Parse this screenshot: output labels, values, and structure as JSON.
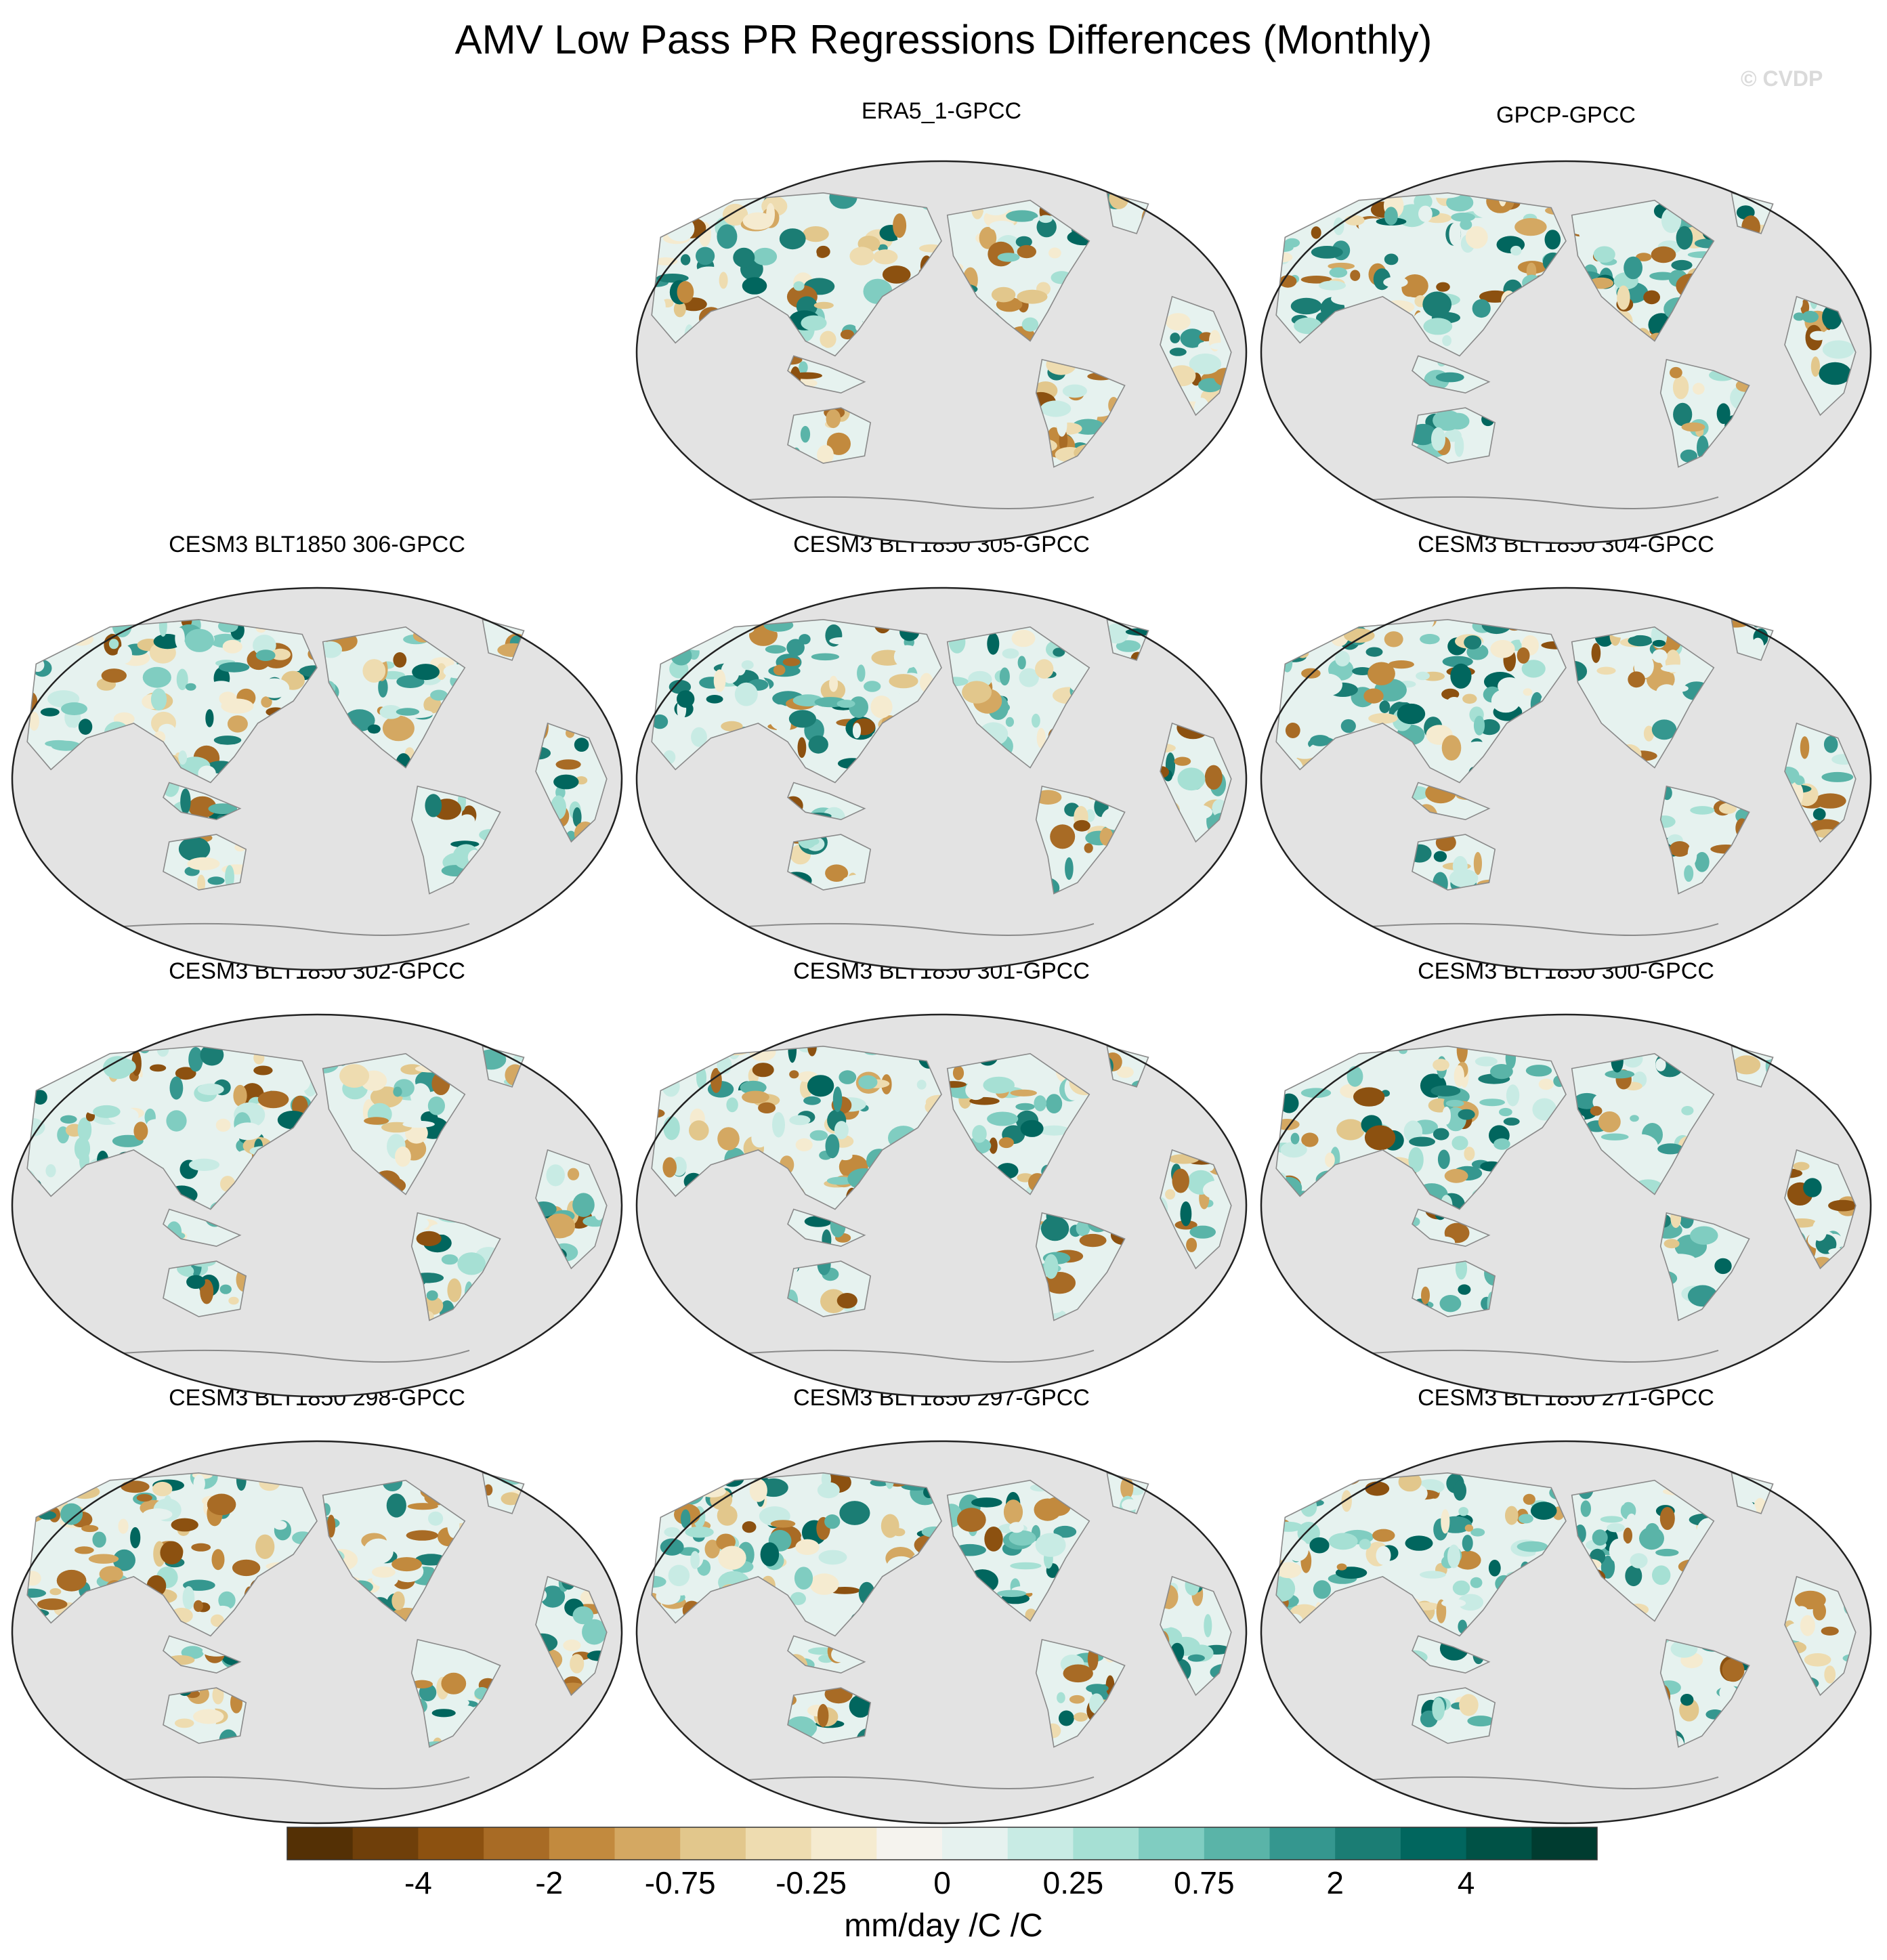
{
  "figure": {
    "title": "AMV Low Pass PR Regressions Differences (Monthly)",
    "watermark": "© CVDP"
  },
  "panels": [
    {
      "label": "ERA5_1-GPCC",
      "dominant": "brown"
    },
    {
      "label": "GPCP-GPCC",
      "dominant": "teal"
    },
    {
      "label": "CESM3 BLT1850 306-GPCC",
      "dominant": "teal"
    },
    {
      "label": "CESM3 BLT1850 305-GPCC",
      "dominant": "teal"
    },
    {
      "label": "CESM3 BLT1850 304-GPCC",
      "dominant": "teal"
    },
    {
      "label": "CESM3 BLT1850 302-GPCC",
      "dominant": "teal"
    },
    {
      "label": "CESM3 BLT1850 301-GPCC",
      "dominant": "teal"
    },
    {
      "label": "CESM3 BLT1850 300-GPCC",
      "dominant": "teal"
    },
    {
      "label": "CESM3 BLT1850 298-GPCC",
      "dominant": "brown"
    },
    {
      "label": "CESM3 BLT1850 297-GPCC",
      "dominant": "teal"
    },
    {
      "label": "CESM3 BLT1850 271-GPCC",
      "dominant": "teal"
    }
  ],
  "map_colors": {
    "ocean": "#e3e3e3",
    "coastline": "#8a8a8a"
  },
  "colorbar": {
    "colors": [
      "#543005",
      "#6f3f0a",
      "#8c5110",
      "#a86b25",
      "#c28a3e",
      "#d4a862",
      "#e2c78c",
      "#eedcb0",
      "#f5ebd0",
      "#f5f3ee",
      "#e6f2ef",
      "#c8ebe4",
      "#a6e0d4",
      "#80cdc1",
      "#5ab4a8",
      "#35978f",
      "#1b7d74",
      "#01665e",
      "#005246",
      "#003c30"
    ],
    "tick_labels": [
      "-4",
      "-2",
      "-0.75",
      "-0.25",
      "0",
      "0.25",
      "0.75",
      "2",
      "4"
    ],
    "units": "mm/day /C /C"
  }
}
